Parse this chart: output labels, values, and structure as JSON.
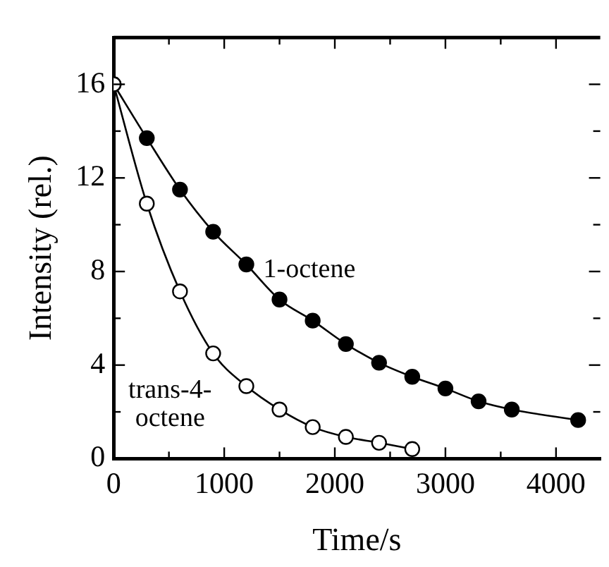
{
  "chart_data": {
    "type": "line",
    "xlabel": "Time/s",
    "ylabel": "Intensity (rel.)",
    "xlim": [
      0,
      4400
    ],
    "ylim": [
      0,
      18
    ],
    "xticks": [
      0,
      {
        "value": 500,
        "label": null
      },
      1000,
      {
        "value": 1500,
        "label": null
      },
      2000,
      {
        "value": 2500,
        "label": null
      },
      3000,
      {
        "value": 3500,
        "label": null
      },
      4000
    ],
    "yticks": [
      0,
      {
        "value": 2,
        "label": null
      },
      4,
      {
        "value": 6,
        "label": null
      },
      8,
      {
        "value": 10,
        "label": null
      },
      12,
      {
        "value": 14,
        "label": null
      },
      16
    ],
    "marker": "circle",
    "grid": false,
    "legend": false,
    "series": [
      {
        "name": "1-octene",
        "color": "#000000",
        "x": [
          0,
          300,
          600,
          900,
          1200,
          1500,
          1800,
          2100,
          2400,
          2700,
          3000,
          3300,
          3600,
          4200
        ],
        "values": [
          16,
          13.7,
          11.5,
          9.7,
          8.3,
          6.8,
          5.9,
          4.9,
          4.1,
          3.5,
          3.0,
          2.45,
          2.1,
          1.65
        ]
      },
      {
        "name": "trans-4-octene",
        "color": "#000000",
        "x": [
          0,
          300,
          600,
          900,
          1200,
          1500,
          1800,
          2100,
          2400,
          2700
        ],
        "values": [
          16,
          10.9,
          7.15,
          4.5,
          3.1,
          2.1,
          1.35,
          0.93,
          0.68,
          0.41
        ]
      }
    ]
  }
}
